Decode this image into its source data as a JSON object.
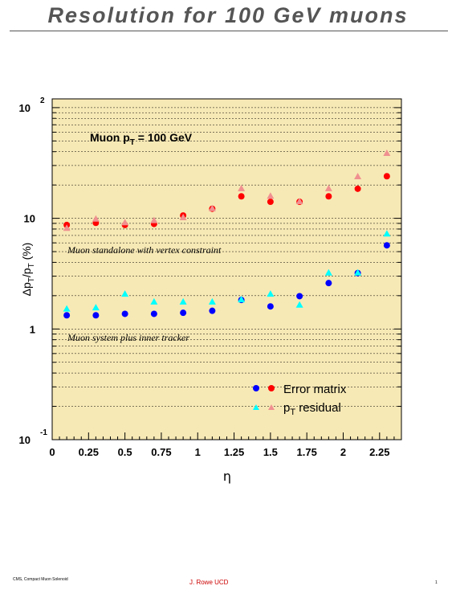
{
  "title": "Resolution for 100 GeV muons",
  "footer": {
    "left": "CMS, Compact Muon Solenoid",
    "center": "J. Rowe UCD",
    "right": "1"
  },
  "colors": {
    "plot_background": "#f7e9b5",
    "error_matrix_high": "#ff0000",
    "error_matrix_low": "#0000ff",
    "residual_high": "#f09090",
    "residual_low": "#00ffff",
    "footer_text": "#cc0000"
  },
  "chart_data": {
    "type": "scatter",
    "x_axis": {
      "label": "η",
      "range": [
        0,
        2.4
      ],
      "scale": "linear",
      "tick_labels": [
        "0",
        "0.25",
        "0.5",
        "0.75",
        "1",
        "1.25",
        "1.5",
        "1.75",
        "2",
        "2.25"
      ]
    },
    "y_axis": {
      "label": "Δp_T/p_T (%)",
      "range": [
        0.1,
        120
      ],
      "scale": "log",
      "tick_labels": [
        "10^-1",
        "1",
        "10",
        "10^2"
      ]
    },
    "grid": "horizontal",
    "annotations": {
      "header": "Muon p_T = 100 GeV",
      "upper_group": "Muon standalone with vertex constraint",
      "lower_group": "Muon system plus inner tracker"
    },
    "legend": {
      "placement": "bottom-right",
      "entries": [
        "Error matrix",
        "p_T residual"
      ]
    },
    "series": [
      {
        "name": "Error matrix",
        "group": "standalone",
        "marker": "circle",
        "color": "#ff0000",
        "x": [
          0.1,
          0.3,
          0.5,
          0.7,
          0.9,
          1.1,
          1.3,
          1.5,
          1.7,
          1.9,
          2.1,
          2.3
        ],
        "y": [
          8.7,
          9.1,
          8.7,
          8.9,
          10.6,
          12.2,
          15.8,
          14.1,
          14.1,
          15.8,
          18.5,
          24.0
        ]
      },
      {
        "name": "p_T residual",
        "group": "standalone",
        "marker": "triangle",
        "color": "#f09090",
        "x": [
          0.1,
          0.3,
          0.5,
          0.7,
          0.9,
          1.1,
          1.3,
          1.5,
          1.7,
          1.9,
          2.1,
          2.3
        ],
        "y": [
          8.1,
          9.8,
          9.1,
          9.5,
          10.1,
          12.2,
          18.5,
          15.8,
          14.1,
          18.5,
          23.7,
          38.5
        ]
      },
      {
        "name": "Error matrix",
        "group": "combined",
        "marker": "circle",
        "color": "#0000ff",
        "x": [
          0.1,
          0.3,
          0.5,
          0.7,
          0.9,
          1.1,
          1.3,
          1.5,
          1.7,
          1.9,
          2.1,
          2.3
        ],
        "y": [
          1.33,
          1.33,
          1.37,
          1.37,
          1.4,
          1.46,
          1.83,
          1.6,
          1.98,
          2.6,
          3.2,
          5.7
        ]
      },
      {
        "name": "p_T residual",
        "group": "combined",
        "marker": "triangle",
        "color": "#00ffff",
        "x": [
          0.1,
          0.3,
          0.5,
          0.7,
          0.9,
          1.1,
          1.3,
          1.5,
          1.7,
          1.9,
          2.1,
          2.3
        ],
        "y": [
          1.51,
          1.55,
          2.06,
          1.75,
          1.75,
          1.75,
          1.83,
          2.06,
          1.64,
          3.2,
          3.2,
          7.2
        ]
      }
    ]
  }
}
